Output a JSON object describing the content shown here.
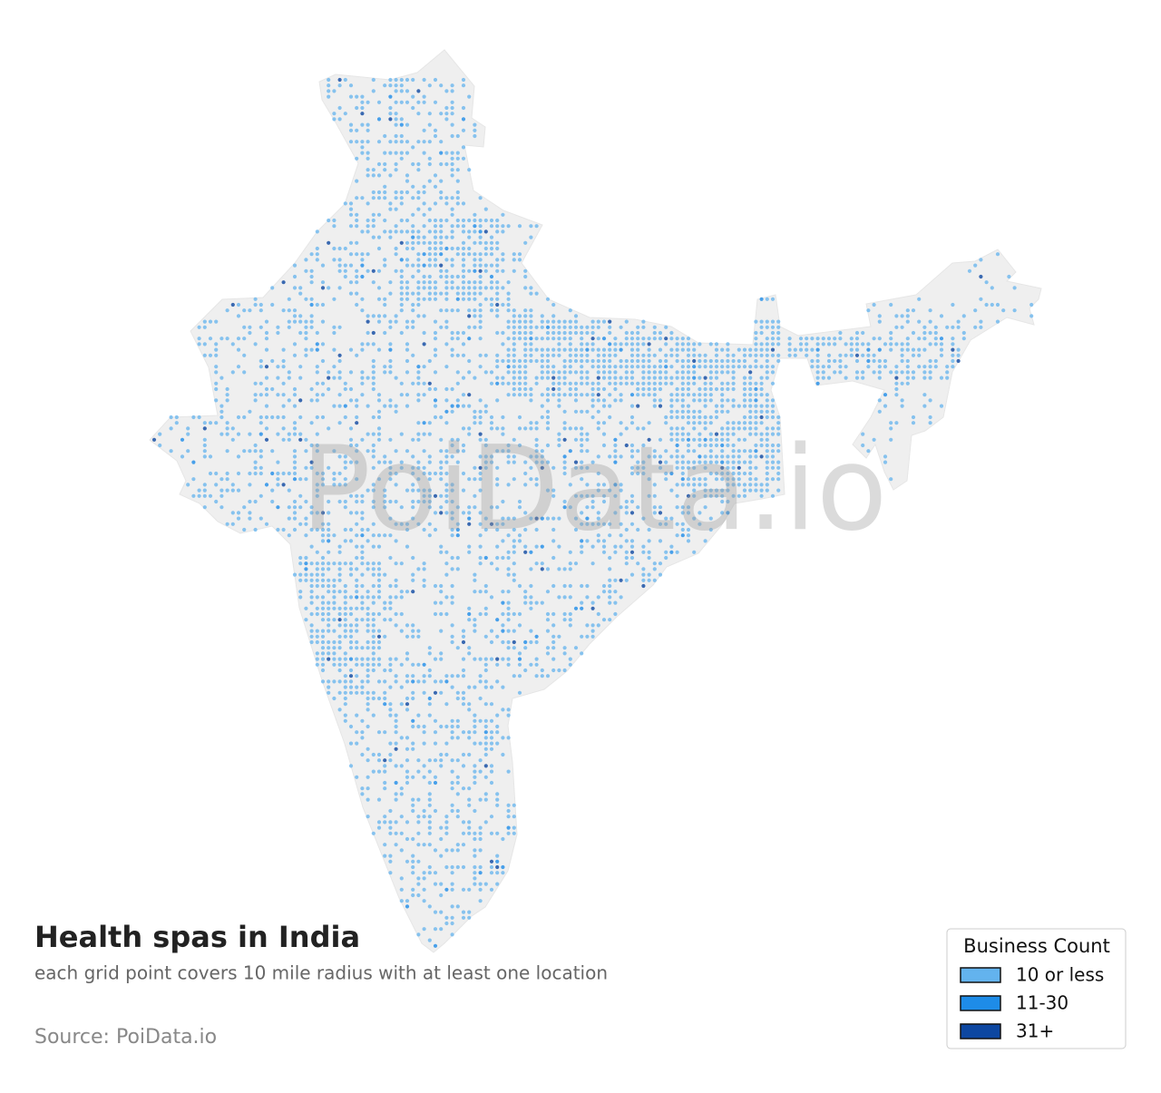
{
  "title": "Health spas in India",
  "subtitle": "each grid point covers 10 mile radius with at least one location",
  "source": "Source: PoiData.io",
  "watermark": "PoiData.io",
  "legend": {
    "title": "Business Count",
    "items": [
      {
        "label": "10 or less",
        "color": "#63b3ee"
      },
      {
        "label": "11-30",
        "color": "#1e8ce8"
      },
      {
        "label": "31+",
        "color": "#0d47a1"
      }
    ]
  }
}
